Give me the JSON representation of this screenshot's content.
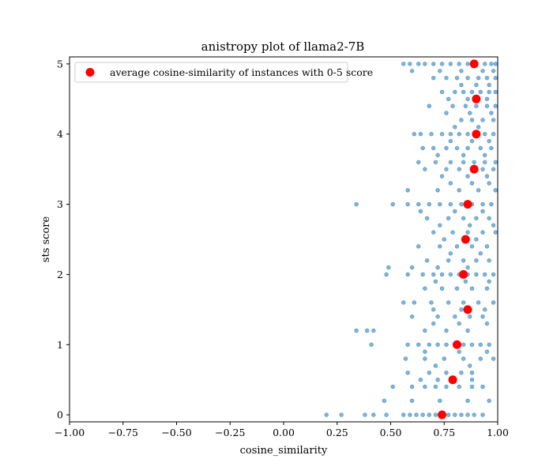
{
  "chart_data": {
    "type": "scatter",
    "title": "anistropy plot of llama2-7B",
    "xlabel": "cosine_similarity",
    "ylabel": "sts score",
    "xlim": [
      -1.0,
      1.0
    ],
    "ylim": [
      -0.1,
      5.1
    ],
    "xticks": [
      "−1.00",
      "−0.75",
      "−0.50",
      "−0.25",
      "0.00",
      "0.25",
      "0.50",
      "0.75",
      "1.00"
    ],
    "xtick_values": [
      -1.0,
      -0.75,
      -0.5,
      -0.25,
      0.0,
      0.25,
      0.5,
      0.75,
      1.0
    ],
    "yticks": [
      "0",
      "1",
      "2",
      "3",
      "4",
      "5"
    ],
    "ytick_values": [
      0,
      1,
      2,
      3,
      4,
      5
    ],
    "grid": false,
    "legend": {
      "placement": "top-left",
      "label": "average cosine-similarity of instances with 0-5 score"
    },
    "colors": {
      "instances": "#1f77b4",
      "average": "#ff0000"
    },
    "series": [
      {
        "name": "",
        "marker": "small-circle",
        "color": "#1f77b4",
        "points": [
          [
            0.56,
            5.0
          ],
          [
            0.59,
            5.0
          ],
          [
            0.63,
            5.0
          ],
          [
            0.66,
            5.0
          ],
          [
            0.7,
            5.0
          ],
          [
            0.74,
            5.0
          ],
          [
            0.78,
            5.0
          ],
          [
            0.82,
            5.0
          ],
          [
            0.86,
            5.0
          ],
          [
            0.9,
            5.0
          ],
          [
            0.94,
            5.0
          ],
          [
            0.97,
            5.0
          ],
          [
            0.99,
            5.0
          ],
          [
            0.6,
            4.9
          ],
          [
            0.73,
            4.9
          ],
          [
            0.83,
            4.9
          ],
          [
            0.93,
            4.9
          ],
          [
            0.98,
            4.9
          ],
          [
            0.7,
            4.8
          ],
          [
            0.76,
            4.8
          ],
          [
            0.81,
            4.8
          ],
          [
            0.86,
            4.8
          ],
          [
            0.91,
            4.8
          ],
          [
            0.95,
            4.8
          ],
          [
            0.99,
            4.8
          ],
          [
            0.83,
            4.7
          ],
          [
            0.9,
            4.7
          ],
          [
            0.96,
            4.7
          ],
          [
            0.74,
            4.6
          ],
          [
            0.8,
            4.6
          ],
          [
            0.84,
            4.6
          ],
          [
            0.88,
            4.6
          ],
          [
            0.92,
            4.6
          ],
          [
            0.96,
            4.6
          ],
          [
            0.99,
            4.6
          ],
          [
            0.77,
            4.5
          ],
          [
            0.86,
            4.5
          ],
          [
            0.95,
            4.5
          ],
          [
            0.68,
            4.4
          ],
          [
            0.79,
            4.4
          ],
          [
            0.85,
            4.4
          ],
          [
            0.9,
            4.4
          ],
          [
            0.95,
            4.4
          ],
          [
            0.99,
            4.4
          ],
          [
            0.76,
            4.3
          ],
          [
            0.87,
            4.3
          ],
          [
            0.97,
            4.3
          ],
          [
            0.83,
            4.2
          ],
          [
            0.88,
            4.2
          ],
          [
            0.93,
            4.2
          ],
          [
            0.98,
            4.2
          ],
          [
            0.8,
            4.1
          ],
          [
            0.91,
            4.1
          ],
          [
            0.61,
            4.0
          ],
          [
            0.64,
            4.0
          ],
          [
            0.69,
            4.0
          ],
          [
            0.74,
            4.0
          ],
          [
            0.78,
            4.0
          ],
          [
            0.82,
            4.0
          ],
          [
            0.86,
            4.0
          ],
          [
            0.9,
            4.0
          ],
          [
            0.94,
            4.0
          ],
          [
            0.98,
            4.0
          ],
          [
            0.78,
            3.9
          ],
          [
            0.88,
            3.9
          ],
          [
            0.96,
            3.9
          ],
          [
            0.65,
            3.8
          ],
          [
            0.7,
            3.8
          ],
          [
            0.76,
            3.8
          ],
          [
            0.81,
            3.8
          ],
          [
            0.86,
            3.8
          ],
          [
            0.92,
            3.8
          ],
          [
            0.97,
            3.8
          ],
          [
            0.72,
            3.7
          ],
          [
            0.84,
            3.7
          ],
          [
            0.94,
            3.7
          ],
          [
            0.63,
            3.6
          ],
          [
            0.71,
            3.6
          ],
          [
            0.78,
            3.6
          ],
          [
            0.84,
            3.6
          ],
          [
            0.89,
            3.6
          ],
          [
            0.94,
            3.6
          ],
          [
            0.99,
            3.6
          ],
          [
            0.66,
            3.5
          ],
          [
            0.76,
            3.5
          ],
          [
            0.82,
            3.5
          ],
          [
            0.88,
            3.5
          ],
          [
            0.93,
            3.5
          ],
          [
            0.98,
            3.5
          ],
          [
            0.74,
            3.4
          ],
          [
            0.86,
            3.4
          ],
          [
            0.95,
            3.4
          ],
          [
            0.78,
            3.3
          ],
          [
            0.88,
            3.3
          ],
          [
            0.96,
            3.3
          ],
          [
            0.58,
            3.2
          ],
          [
            0.72,
            3.2
          ],
          [
            0.82,
            3.2
          ],
          [
            0.91,
            3.2
          ],
          [
            0.99,
            3.2
          ],
          [
            0.34,
            3.0
          ],
          [
            0.51,
            3.0
          ],
          [
            0.58,
            3.0
          ],
          [
            0.63,
            3.0
          ],
          [
            0.68,
            3.0
          ],
          [
            0.73,
            3.0
          ],
          [
            0.78,
            3.0
          ],
          [
            0.83,
            3.0
          ],
          [
            0.88,
            3.0
          ],
          [
            0.93,
            3.0
          ],
          [
            0.97,
            3.0
          ],
          [
            0.64,
            2.9
          ],
          [
            0.8,
            2.9
          ],
          [
            0.93,
            2.9
          ],
          [
            0.67,
            2.8
          ],
          [
            0.77,
            2.8
          ],
          [
            0.84,
            2.8
          ],
          [
            0.9,
            2.8
          ],
          [
            0.96,
            2.8
          ],
          [
            0.73,
            2.7
          ],
          [
            0.87,
            2.7
          ],
          [
            0.98,
            2.7
          ],
          [
            0.7,
            2.6
          ],
          [
            0.79,
            2.6
          ],
          [
            0.86,
            2.6
          ],
          [
            0.93,
            2.6
          ],
          [
            0.99,
            2.6
          ],
          [
            0.75,
            2.5
          ],
          [
            0.9,
            2.5
          ],
          [
            0.63,
            2.4
          ],
          [
            0.73,
            2.4
          ],
          [
            0.81,
            2.4
          ],
          [
            0.88,
            2.4
          ],
          [
            0.95,
            2.4
          ],
          [
            0.78,
            2.3
          ],
          [
            0.92,
            2.3
          ],
          [
            0.67,
            2.2
          ],
          [
            0.77,
            2.2
          ],
          [
            0.84,
            2.2
          ],
          [
            0.9,
            2.2
          ],
          [
            0.96,
            2.2
          ],
          [
            0.49,
            2.1
          ],
          [
            0.6,
            2.1
          ],
          [
            0.72,
            2.1
          ],
          [
            0.86,
            2.1
          ],
          [
            0.48,
            2.0
          ],
          [
            0.58,
            2.0
          ],
          [
            0.65,
            2.0
          ],
          [
            0.7,
            2.0
          ],
          [
            0.74,
            2.0
          ],
          [
            0.78,
            2.0
          ],
          [
            0.82,
            2.0
          ],
          [
            0.86,
            2.0
          ],
          [
            0.9,
            2.0
          ],
          [
            0.94,
            2.0
          ],
          [
            0.98,
            2.0
          ],
          [
            0.71,
            1.9
          ],
          [
            0.85,
            1.9
          ],
          [
            0.96,
            1.9
          ],
          [
            0.66,
            1.8
          ],
          [
            0.74,
            1.8
          ],
          [
            0.81,
            1.8
          ],
          [
            0.88,
            1.8
          ],
          [
            0.95,
            1.8
          ],
          [
            0.56,
            1.6
          ],
          [
            0.61,
            1.6
          ],
          [
            0.69,
            1.6
          ],
          [
            0.77,
            1.6
          ],
          [
            0.84,
            1.6
          ],
          [
            0.91,
            1.6
          ],
          [
            0.98,
            1.6
          ],
          [
            0.7,
            1.5
          ],
          [
            0.83,
            1.5
          ],
          [
            0.94,
            1.5
          ],
          [
            0.6,
            1.4
          ],
          [
            0.72,
            1.4
          ],
          [
            0.8,
            1.4
          ],
          [
            0.87,
            1.4
          ],
          [
            0.93,
            1.4
          ],
          [
            0.7,
            1.3
          ],
          [
            0.82,
            1.3
          ],
          [
            0.95,
            1.3
          ],
          [
            0.34,
            1.2
          ],
          [
            0.39,
            1.2
          ],
          [
            0.42,
            1.2
          ],
          [
            0.66,
            1.2
          ],
          [
            0.76,
            1.2
          ],
          [
            0.86,
            1.2
          ],
          [
            0.41,
            1.0
          ],
          [
            0.58,
            1.0
          ],
          [
            0.63,
            1.0
          ],
          [
            0.68,
            1.0
          ],
          [
            0.72,
            1.0
          ],
          [
            0.76,
            1.0
          ],
          [
            0.8,
            1.0
          ],
          [
            0.84,
            1.0
          ],
          [
            0.88,
            1.0
          ],
          [
            0.92,
            1.0
          ],
          [
            0.96,
            1.0
          ],
          [
            0.66,
            0.9
          ],
          [
            0.82,
            0.9
          ],
          [
            0.95,
            0.9
          ],
          [
            0.57,
            0.8
          ],
          [
            0.66,
            0.8
          ],
          [
            0.75,
            0.8
          ],
          [
            0.84,
            0.8
          ],
          [
            0.92,
            0.8
          ],
          [
            0.98,
            0.8
          ],
          [
            0.71,
            0.7
          ],
          [
            0.87,
            0.7
          ],
          [
            0.58,
            0.6
          ],
          [
            0.68,
            0.6
          ],
          [
            0.76,
            0.6
          ],
          [
            0.83,
            0.6
          ],
          [
            0.88,
            0.6
          ],
          [
            0.64,
            0.5
          ],
          [
            0.72,
            0.5
          ],
          [
            0.88,
            0.5
          ],
          [
            0.51,
            0.4
          ],
          [
            0.6,
            0.4
          ],
          [
            0.66,
            0.4
          ],
          [
            0.71,
            0.4
          ],
          [
            0.76,
            0.4
          ],
          [
            0.82,
            0.4
          ],
          [
            0.88,
            0.4
          ],
          [
            0.93,
            0.4
          ],
          [
            0.47,
            0.2
          ],
          [
            0.6,
            0.2
          ],
          [
            0.73,
            0.2
          ],
          [
            0.86,
            0.2
          ],
          [
            0.96,
            0.2
          ],
          [
            0.2,
            0.0
          ],
          [
            0.27,
            0.0
          ],
          [
            0.38,
            0.0
          ],
          [
            0.42,
            0.0
          ],
          [
            0.48,
            0.0
          ],
          [
            0.56,
            0.0
          ],
          [
            0.59,
            0.0
          ],
          [
            0.62,
            0.0
          ],
          [
            0.65,
            0.0
          ],
          [
            0.68,
            0.0
          ],
          [
            0.71,
            0.0
          ],
          [
            0.74,
            0.0
          ],
          [
            0.77,
            0.0
          ],
          [
            0.8,
            0.0
          ],
          [
            0.83,
            0.0
          ],
          [
            0.86,
            0.0
          ],
          [
            0.89,
            0.0
          ],
          [
            0.93,
            0.0
          ]
        ]
      },
      {
        "name": "average cosine-similarity of instances with 0-5 score",
        "marker": "large-circle",
        "color": "#ff0000",
        "points": [
          [
            0.74,
            0.0
          ],
          [
            0.79,
            0.5
          ],
          [
            0.81,
            1.0
          ],
          [
            0.86,
            1.5
          ],
          [
            0.84,
            2.0
          ],
          [
            0.85,
            2.5
          ],
          [
            0.86,
            3.0
          ],
          [
            0.89,
            3.5
          ],
          [
            0.9,
            4.0
          ],
          [
            0.9,
            4.5
          ],
          [
            0.89,
            5.0
          ]
        ]
      }
    ]
  }
}
